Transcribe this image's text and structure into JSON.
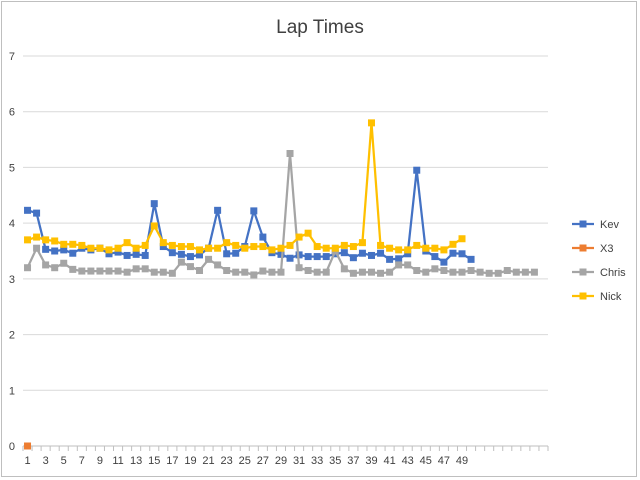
{
  "chart_data": {
    "type": "line",
    "title": "Lap Times",
    "xlabel": "",
    "ylabel": "",
    "ylim": [
      0,
      7
    ],
    "yticks": [
      "0",
      "1",
      "2",
      "3",
      "4",
      "5",
      "6",
      "7"
    ],
    "x_tick_labels": [
      "1",
      "3",
      "5",
      "7",
      "9",
      "11",
      "13",
      "15",
      "17",
      "19",
      "21",
      "23",
      "25",
      "27",
      "29",
      "31",
      "33",
      "35",
      "37",
      "39",
      "41",
      "43",
      "45",
      "47",
      "49"
    ],
    "x_count": 58,
    "grid": true,
    "legend_position": "right",
    "series": [
      {
        "name": "Kev",
        "color": "#4472c4",
        "values": [
          4.23,
          4.18,
          3.53,
          3.5,
          3.52,
          3.46,
          3.55,
          3.52,
          3.55,
          3.45,
          3.48,
          3.42,
          3.44,
          3.42,
          4.35,
          3.58,
          3.47,
          3.44,
          3.4,
          3.43,
          3.55,
          4.23,
          3.45,
          3.46,
          3.58,
          4.22,
          3.75,
          3.47,
          3.44,
          3.37,
          3.43,
          3.4,
          3.4,
          3.4,
          3.45,
          3.47,
          3.38,
          3.46,
          3.42,
          3.46,
          3.35,
          3.36,
          3.45,
          4.95,
          3.5,
          3.4,
          3.3,
          3.46,
          3.45,
          3.35
        ]
      },
      {
        "name": "X3",
        "color": "#ed7d31",
        "values": [
          0
        ]
      },
      {
        "name": "Chris",
        "color": "#a5a5a5",
        "values": [
          3.2,
          3.55,
          3.25,
          3.2,
          3.28,
          3.17,
          3.14,
          3.14,
          3.14,
          3.14,
          3.14,
          3.12,
          3.18,
          3.18,
          3.12,
          3.12,
          3.1,
          3.3,
          3.22,
          3.15,
          3.35,
          3.25,
          3.15,
          3.12,
          3.12,
          3.07,
          3.14,
          3.12,
          3.12,
          5.25,
          3.2,
          3.15,
          3.12,
          3.12,
          3.5,
          3.18,
          3.1,
          3.12,
          3.12,
          3.1,
          3.12,
          3.25,
          3.25,
          3.15,
          3.12,
          3.18,
          3.15,
          3.12,
          3.12,
          3.15,
          3.12,
          3.1,
          3.1,
          3.15,
          3.12,
          3.12,
          3.12
        ]
      },
      {
        "name": "Nick",
        "color": "#ffc000",
        "values": [
          3.7,
          3.75,
          3.7,
          3.68,
          3.62,
          3.62,
          3.6,
          3.55,
          3.55,
          3.52,
          3.55,
          3.65,
          3.55,
          3.6,
          3.95,
          3.65,
          3.6,
          3.58,
          3.58,
          3.52,
          3.55,
          3.55,
          3.65,
          3.6,
          3.55,
          3.58,
          3.58,
          3.52,
          3.55,
          3.6,
          3.75,
          3.82,
          3.58,
          3.55,
          3.55,
          3.6,
          3.58,
          3.65,
          5.8,
          3.6,
          3.55,
          3.52,
          3.52,
          3.6,
          3.55,
          3.55,
          3.52,
          3.62,
          3.72
        ]
      }
    ]
  }
}
